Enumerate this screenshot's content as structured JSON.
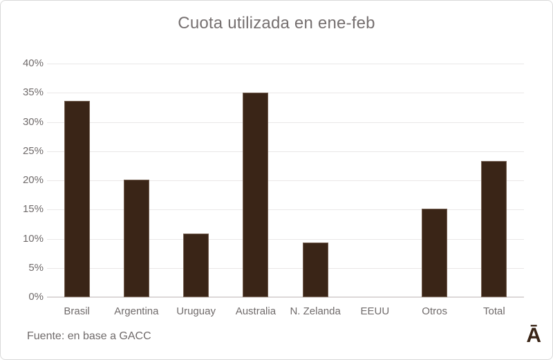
{
  "title": "Cuota utilizada en ene-feb",
  "footer": {
    "source": "Fuente: en base a GACC",
    "logo": "Ā"
  },
  "colors": {
    "bar_fill": "#3A2517",
    "bar_edge": "#A89485",
    "title_text": "#767070",
    "axis_text": "#6F6A6A",
    "gridline": "#E9E7E7",
    "baseline": "#DCD8D8",
    "frame_border": "#D9D9D9",
    "background": "#FFFFFF"
  },
  "chart_data": {
    "type": "bar",
    "title": "Cuota utilizada en ene-feb",
    "categories": [
      "Brasil",
      "Argentina",
      "Uruguay",
      "Australia",
      "N. Zelanda",
      "EEUU",
      "Otros",
      "Total"
    ],
    "values": [
      33.6,
      20.1,
      10.9,
      35.0,
      9.4,
      0.0,
      15.2,
      23.3
    ],
    "value_unit": "%",
    "xlabel": "",
    "ylabel": "",
    "ylim": [
      0,
      40
    ],
    "ytick_step": 5,
    "ytick_labels": [
      "0%",
      "5%",
      "10%",
      "15%",
      "20%",
      "25%",
      "30%",
      "35%",
      "40%"
    ],
    "grid": true,
    "legend": false,
    "annotation": "Fuente: en base a GACC"
  }
}
